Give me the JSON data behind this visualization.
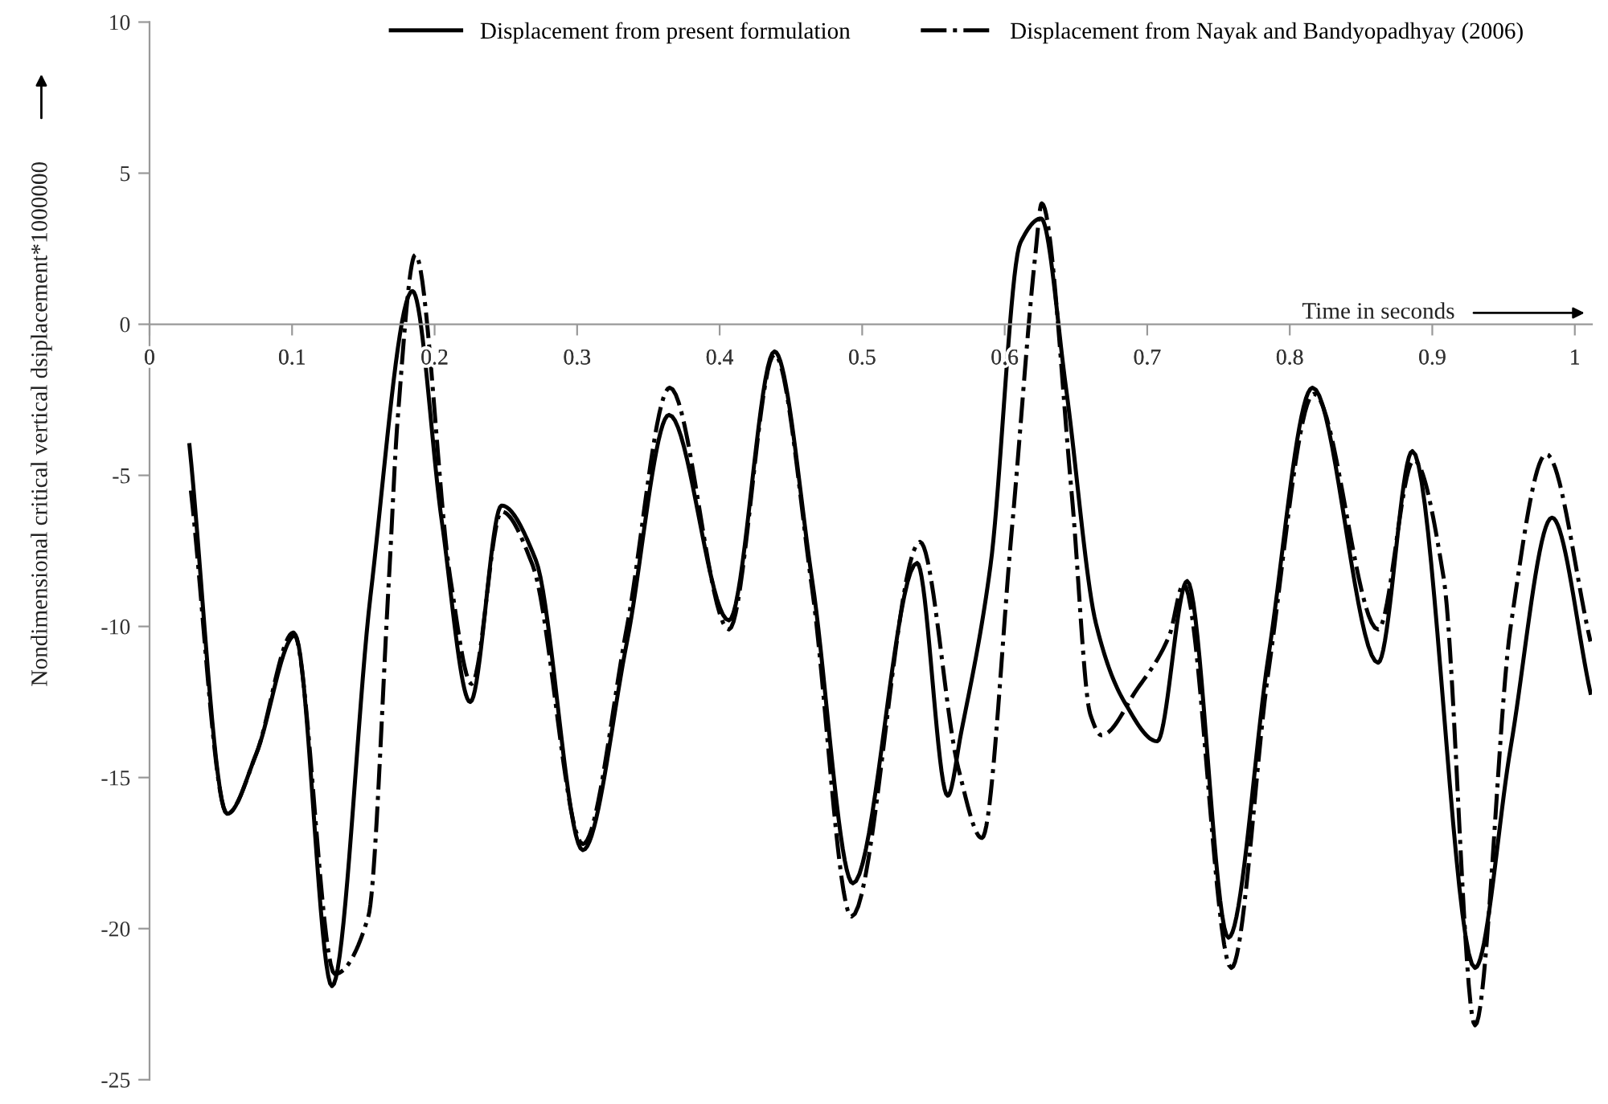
{
  "chart_data": {
    "type": "line",
    "xlabel": "Time in seconds",
    "ylabel": "Nondimensional critical vertical dsiplacement*1000000",
    "xlim": [
      0,
      1.012
    ],
    "ylim": [
      -25,
      10
    ],
    "xticks": [
      {
        "value": 0,
        "label": "0"
      },
      0.1,
      0.2,
      0.3,
      0.4,
      0.5,
      0.6,
      0.7,
      0.8,
      0.9,
      {
        "value": 1,
        "label": "1"
      }
    ],
    "yticks": [
      -25,
      -20,
      -15,
      -10,
      -5,
      0,
      5,
      10
    ],
    "grid": false,
    "legend": "top",
    "marker": "none",
    "series": [
      {
        "name": "Displacement from present formulation",
        "color": "#000000",
        "line_style": "solid",
        "x": [
          0.028,
          0.0545,
          0.075,
          0.102,
          0.128,
          0.155,
          0.1845,
          0.205,
          0.225,
          0.247,
          0.271,
          0.304,
          0.335,
          0.3645,
          0.4065,
          0.4385,
          0.465,
          0.4935,
          0.5385,
          0.56,
          0.5695,
          0.59,
          0.611,
          0.6255,
          0.643,
          0.664,
          0.684,
          0.707,
          0.728,
          0.757,
          0.785,
          0.816,
          0.862,
          0.886,
          0.93,
          0.955,
          0.984,
          1.011
        ],
        "values": [
          -4.0,
          -16.2,
          -14.2,
          -10.3,
          -21.9,
          -9.0,
          1.1,
          -6.5,
          -12.5,
          -6.0,
          -7.8,
          -17.4,
          -10.5,
          -3.0,
          -9.8,
          -0.9,
          -8.5,
          -18.5,
          -7.9,
          -15.6,
          -13.5,
          -8.0,
          2.7,
          3.5,
          -2.1,
          -9.9,
          -12.5,
          -13.8,
          -8.5,
          -20.3,
          -11.0,
          -2.1,
          -11.2,
          -4.2,
          -21.3,
          -14.0,
          -6.4,
          -12.2
        ]
      },
      {
        "name": "Displacement from Nayak and Bandyopadhyay (2006)",
        "color": "#000000",
        "line_style": "dashdot",
        "x": [
          0.029,
          0.0545,
          0.075,
          0.101,
          0.13,
          0.1535,
          0.168,
          0.174,
          0.1865,
          0.211,
          0.226,
          0.247,
          0.269,
          0.304,
          0.335,
          0.365,
          0.4065,
          0.4385,
          0.465,
          0.4925,
          0.5405,
          0.5675,
          0.584,
          0.605,
          0.6215,
          0.626,
          0.647,
          0.66,
          0.668,
          0.6925,
          0.7155,
          0.7255,
          0.759,
          0.785,
          0.817,
          0.862,
          0.887,
          0.908,
          0.93,
          0.955,
          0.98,
          1.011
        ],
        "values": [
          -5.5,
          -16.2,
          -14.2,
          -10.2,
          -21.5,
          -19.6,
          -8.4,
          -3.2,
          2.3,
          -8.4,
          -11.9,
          -6.2,
          -8.0,
          -17.2,
          -10.0,
          -2.1,
          -10.1,
          -1.0,
          -8.8,
          -19.6,
          -7.2,
          -14.7,
          -17.0,
          -6.8,
          2.3,
          4.0,
          -5.6,
          -12.9,
          -13.6,
          -12.1,
          -10.3,
          -8.6,
          -21.3,
          -11.5,
          -2.3,
          -10.1,
          -4.5,
          -8.4,
          -23.2,
          -10.0,
          -4.3,
          -10.5
        ]
      }
    ]
  }
}
